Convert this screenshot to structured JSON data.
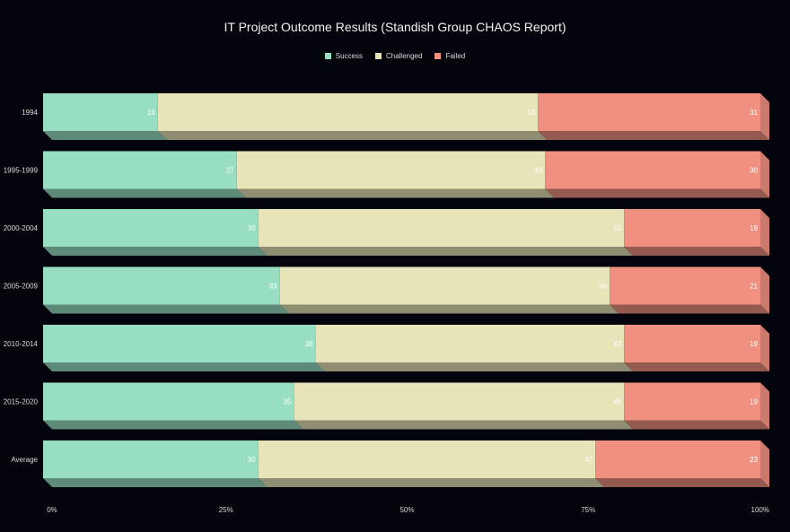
{
  "chart_data": {
    "type": "bar",
    "orientation": "horizontal",
    "stacked": true,
    "normalized_percent": true,
    "title": "IT Project Outcome Results (Standish Group CHAOS Report)",
    "categories": [
      "1994",
      "1995-1999",
      "2000-2004",
      "2005-2009",
      "2010-2014",
      "2015-2020",
      "Average"
    ],
    "series": [
      {
        "name": "Success",
        "color": "#98dec3",
        "values": [
          16,
          27,
          30,
          33,
          38,
          35,
          30
        ]
      },
      {
        "name": "Challenged",
        "color": "#e6e4b8",
        "values": [
          53,
          43,
          51,
          46,
          43,
          46,
          47
        ]
      },
      {
        "name": "Failed",
        "color": "#ef9080",
        "values": [
          31,
          30,
          19,
          21,
          19,
          19,
          23
        ]
      }
    ],
    "x_ticks": [
      "0%",
      "25%",
      "50%",
      "75%",
      "100%"
    ],
    "xlim": [
      0,
      100
    ],
    "grid": false,
    "legend_position": "top-center"
  }
}
